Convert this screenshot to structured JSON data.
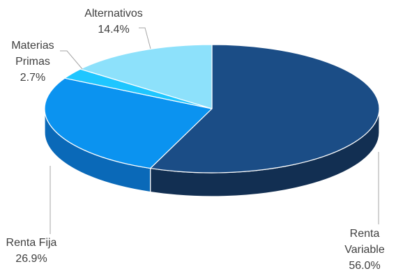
{
  "chart_data": {
    "type": "pie",
    "style": "3d",
    "title": "",
    "slices": [
      {
        "key": "renta-variable",
        "label_lines": [
          "Renta",
          "Variable"
        ],
        "percent_label": "56.0%",
        "value": 56.0,
        "top_color": "#1b4d86",
        "side_color": "#122f52"
      },
      {
        "key": "renta-fija",
        "label_lines": [
          "Renta Fija"
        ],
        "percent_label": "26.9%",
        "value": 26.9,
        "top_color": "#0b93f0",
        "side_color": "#0a69b8"
      },
      {
        "key": "materias-primas",
        "label_lines": [
          "Materias",
          "Primas"
        ],
        "percent_label": "2.7%",
        "value": 2.7,
        "top_color": "#1fc6ff",
        "side_color": "#15a4d8"
      },
      {
        "key": "alternativos",
        "label_lines": [
          "Alternativos"
        ],
        "percent_label": "14.4%",
        "value": 14.4,
        "top_color": "#8de1fb",
        "side_color": "#5ec4e6"
      }
    ]
  }
}
